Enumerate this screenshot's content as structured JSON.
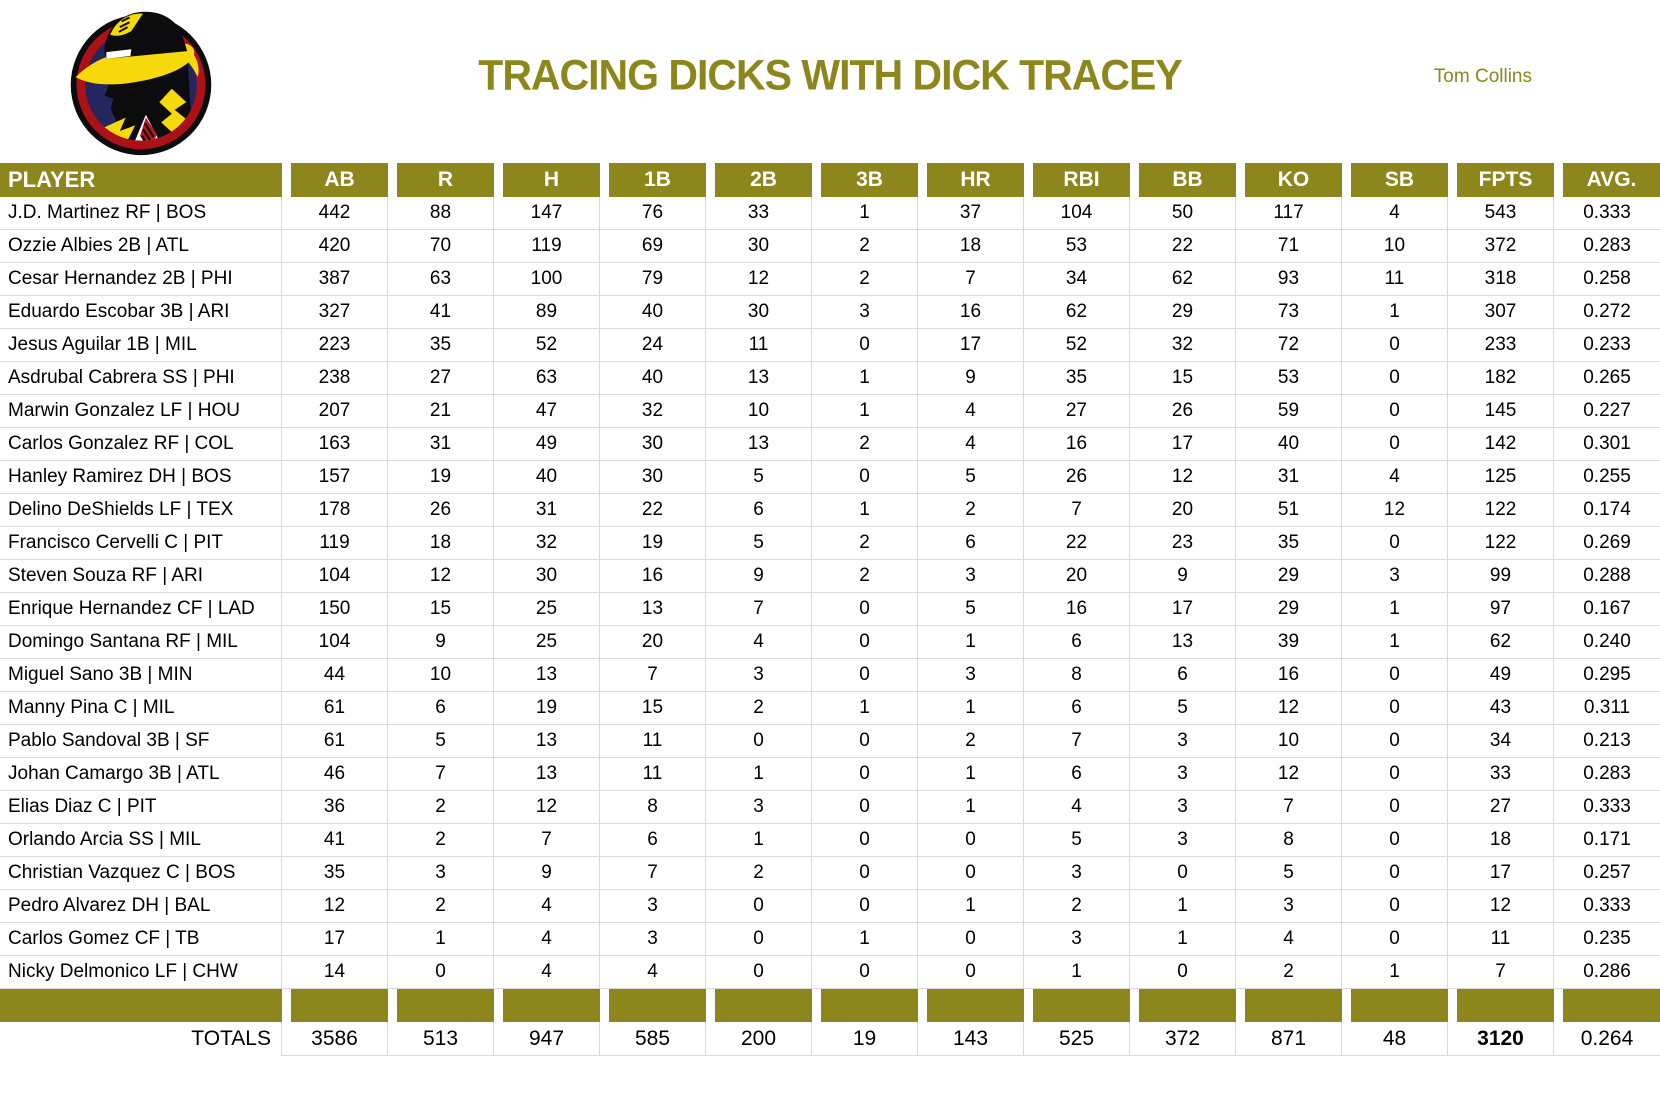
{
  "masthead": {
    "title": "TRACING DICKS WITH DICK TRACEY",
    "author": "Tom Collins",
    "logo": "dick-tracy-logo"
  },
  "colors": {
    "olive": "#8D861D",
    "grid": "#D9D9D9",
    "header_text": "#FFFFFF",
    "logo_navy": "#26265E",
    "logo_red": "#AB1117",
    "logo_yellow": "#F6D90A",
    "logo_black": "#0C0C0E"
  },
  "table": {
    "columns": [
      "PLAYER",
      "AB",
      "R",
      "H",
      "1B",
      "2B",
      "3B",
      "HR",
      "RBI",
      "BB",
      "KO",
      "SB",
      "FPTS",
      "AVG."
    ],
    "rows": [
      {
        "player": "J.D. Martinez RF | BOS",
        "values": [
          "442",
          "88",
          "147",
          "76",
          "33",
          "1",
          "37",
          "104",
          "50",
          "117",
          "4",
          "543",
          "0.333"
        ]
      },
      {
        "player": "Ozzie Albies 2B | ATL",
        "values": [
          "420",
          "70",
          "119",
          "69",
          "30",
          "2",
          "18",
          "53",
          "22",
          "71",
          "10",
          "372",
          "0.283"
        ]
      },
      {
        "player": "Cesar Hernandez 2B | PHI",
        "values": [
          "387",
          "63",
          "100",
          "79",
          "12",
          "2",
          "7",
          "34",
          "62",
          "93",
          "11",
          "318",
          "0.258"
        ]
      },
      {
        "player": "Eduardo Escobar 3B | ARI",
        "values": [
          "327",
          "41",
          "89",
          "40",
          "30",
          "3",
          "16",
          "62",
          "29",
          "73",
          "1",
          "307",
          "0.272"
        ]
      },
      {
        "player": "Jesus Aguilar 1B | MIL",
        "values": [
          "223",
          "35",
          "52",
          "24",
          "11",
          "0",
          "17",
          "52",
          "32",
          "72",
          "0",
          "233",
          "0.233"
        ]
      },
      {
        "player": "Asdrubal Cabrera SS | PHI",
        "values": [
          "238",
          "27",
          "63",
          "40",
          "13",
          "1",
          "9",
          "35",
          "15",
          "53",
          "0",
          "182",
          "0.265"
        ]
      },
      {
        "player": "Marwin Gonzalez LF | HOU",
        "values": [
          "207",
          "21",
          "47",
          "32",
          "10",
          "1",
          "4",
          "27",
          "26",
          "59",
          "0",
          "145",
          "0.227"
        ]
      },
      {
        "player": "Carlos Gonzalez RF | COL",
        "values": [
          "163",
          "31",
          "49",
          "30",
          "13",
          "2",
          "4",
          "16",
          "17",
          "40",
          "0",
          "142",
          "0.301"
        ]
      },
      {
        "player": "Hanley Ramirez DH | BOS",
        "values": [
          "157",
          "19",
          "40",
          "30",
          "5",
          "0",
          "5",
          "26",
          "12",
          "31",
          "4",
          "125",
          "0.255"
        ]
      },
      {
        "player": "Delino DeShields LF | TEX",
        "values": [
          "178",
          "26",
          "31",
          "22",
          "6",
          "1",
          "2",
          "7",
          "20",
          "51",
          "12",
          "122",
          "0.174"
        ]
      },
      {
        "player": "Francisco Cervelli C | PIT",
        "values": [
          "119",
          "18",
          "32",
          "19",
          "5",
          "2",
          "6",
          "22",
          "23",
          "35",
          "0",
          "122",
          "0.269"
        ]
      },
      {
        "player": "Steven Souza RF | ARI",
        "values": [
          "104",
          "12",
          "30",
          "16",
          "9",
          "2",
          "3",
          "20",
          "9",
          "29",
          "3",
          "99",
          "0.288"
        ]
      },
      {
        "player": "Enrique Hernandez CF | LAD",
        "values": [
          "150",
          "15",
          "25",
          "13",
          "7",
          "0",
          "5",
          "16",
          "17",
          "29",
          "1",
          "97",
          "0.167"
        ]
      },
      {
        "player": "Domingo Santana RF | MIL",
        "values": [
          "104",
          "9",
          "25",
          "20",
          "4",
          "0",
          "1",
          "6",
          "13",
          "39",
          "1",
          "62",
          "0.240"
        ]
      },
      {
        "player": "Miguel Sano 3B | MIN",
        "values": [
          "44",
          "10",
          "13",
          "7",
          "3",
          "0",
          "3",
          "8",
          "6",
          "16",
          "0",
          "49",
          "0.295"
        ]
      },
      {
        "player": "Manny Pina C | MIL",
        "values": [
          "61",
          "6",
          "19",
          "15",
          "2",
          "1",
          "1",
          "6",
          "5",
          "12",
          "0",
          "43",
          "0.311"
        ]
      },
      {
        "player": "Pablo Sandoval 3B | SF",
        "values": [
          "61",
          "5",
          "13",
          "11",
          "0",
          "0",
          "2",
          "7",
          "3",
          "10",
          "0",
          "34",
          "0.213"
        ]
      },
      {
        "player": "Johan Camargo 3B | ATL",
        "values": [
          "46",
          "7",
          "13",
          "11",
          "1",
          "0",
          "1",
          "6",
          "3",
          "12",
          "0",
          "33",
          "0.283"
        ]
      },
      {
        "player": "Elias Diaz C | PIT",
        "values": [
          "36",
          "2",
          "12",
          "8",
          "3",
          "0",
          "1",
          "4",
          "3",
          "7",
          "0",
          "27",
          "0.333"
        ]
      },
      {
        "player": "Orlando Arcia SS | MIL",
        "values": [
          "41",
          "2",
          "7",
          "6",
          "1",
          "0",
          "0",
          "5",
          "3",
          "8",
          "0",
          "18",
          "0.171"
        ]
      },
      {
        "player": "Christian Vazquez C | BOS",
        "values": [
          "35",
          "3",
          "9",
          "7",
          "2",
          "0",
          "0",
          "3",
          "0",
          "5",
          "0",
          "17",
          "0.257"
        ]
      },
      {
        "player": "Pedro Alvarez DH | BAL",
        "values": [
          "12",
          "2",
          "4",
          "3",
          "0",
          "0",
          "1",
          "2",
          "1",
          "3",
          "0",
          "12",
          "0.333"
        ]
      },
      {
        "player": "Carlos Gomez CF | TB",
        "values": [
          "17",
          "1",
          "4",
          "3",
          "0",
          "1",
          "0",
          "3",
          "1",
          "4",
          "0",
          "11",
          "0.235"
        ]
      },
      {
        "player": "Nicky Delmonico LF | CHW",
        "values": [
          "14",
          "0",
          "4",
          "4",
          "0",
          "0",
          "0",
          "1",
          "0",
          "2",
          "1",
          "7",
          "0.286"
        ]
      }
    ],
    "totals": {
      "label": "TOTALS",
      "values": [
        "3586",
        "513",
        "947",
        "585",
        "200",
        "19",
        "143",
        "525",
        "372",
        "871",
        "48",
        "3120",
        "0.264"
      ]
    }
  }
}
